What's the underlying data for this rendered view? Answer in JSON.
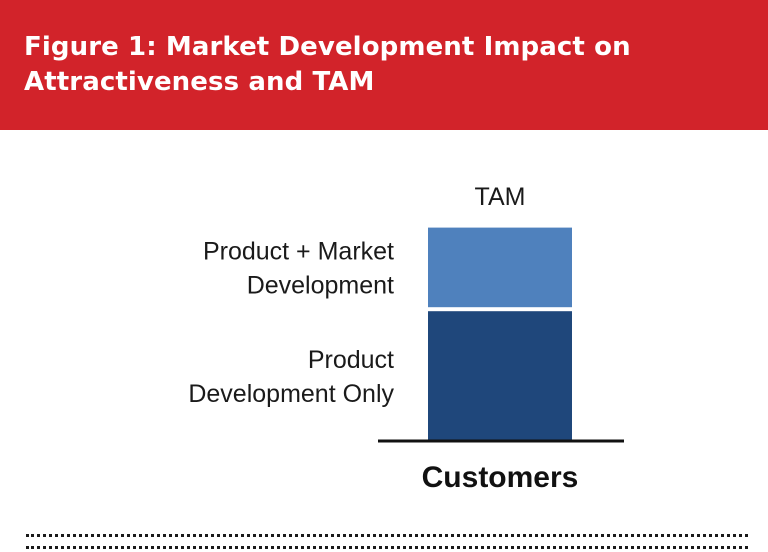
{
  "header": {
    "title": "Figure 1: Market Development Impact on Attractiveness and TAM",
    "background_color": "#d2232a"
  },
  "chart_data": {
    "type": "bar",
    "stacked": true,
    "title": "Figure 1: Market Development Impact on Attractiveness and TAM",
    "categories": [
      "TAM"
    ],
    "xlabel": "Customers",
    "ylabel": "",
    "axis_ticks": false,
    "grid": false,
    "ylim": [
      0,
      1
    ],
    "series": [
      {
        "label_lines": [
          "Product",
          "Development Only"
        ],
        "values": [
          0.59
        ],
        "color": "#1f477b"
      },
      {
        "label_lines": [
          "Product + Market",
          "Development"
        ],
        "values": [
          0.38
        ],
        "color": "#4f81bd"
      }
    ]
  }
}
